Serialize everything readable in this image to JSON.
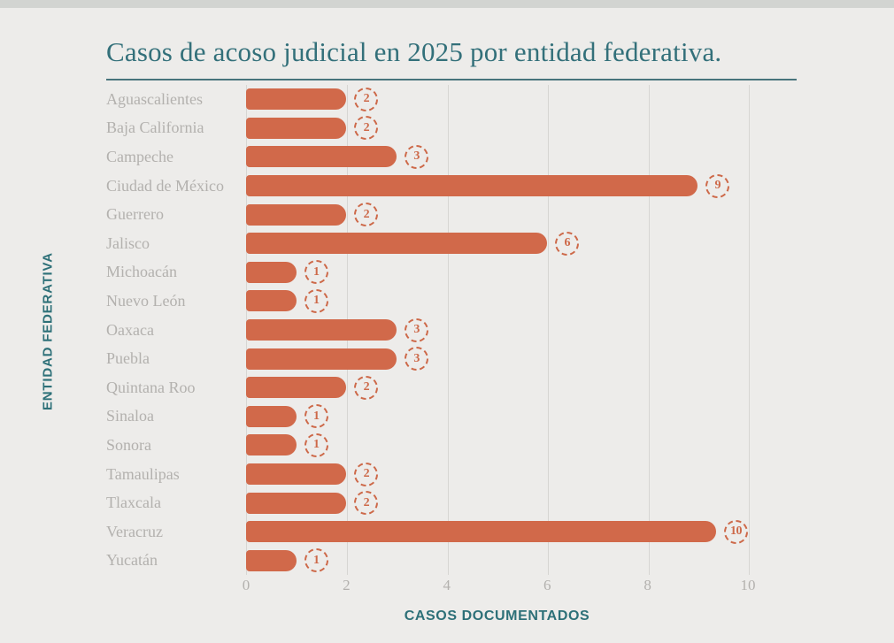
{
  "title": "Casos de acoso judicial en 2025 por entidad federativa.",
  "colors": {
    "background": "#edecea",
    "bar": "#d1694a",
    "badge": "#cd6949",
    "title_teal": "#33707a",
    "axis_label_teal": "#2d7078",
    "category_gray": "#b3b1ae",
    "gridline": "#d7d6d3"
  },
  "chart_data": {
    "type": "bar",
    "orientation": "horizontal",
    "title": "Casos de acoso judicial en 2025 por entidad federativa.",
    "xlabel": "CASOS DOCUMENTADOS",
    "ylabel": "ENTIDAD FEDERATIVA",
    "xlim": [
      0,
      10
    ],
    "xticks": [
      0,
      2,
      4,
      6,
      8,
      10
    ],
    "grid": true,
    "value_labels": "circled at bar end",
    "categories": [
      "Aguascalientes",
      "Baja California",
      "Campeche",
      "Ciudad de México",
      "Guerrero",
      "Jalisco",
      "Michoacán",
      "Nuevo León",
      "Oaxaca",
      "Puebla",
      "Quintana Roo",
      "Sinaloa",
      "Sonora",
      "Tamaulipas",
      "Tlaxcala",
      "Veracruz",
      "Yucatán"
    ],
    "values": [
      2,
      2,
      3,
      9,
      2,
      6,
      1,
      1,
      3,
      3,
      2,
      1,
      1,
      2,
      2,
      10,
      1
    ]
  }
}
